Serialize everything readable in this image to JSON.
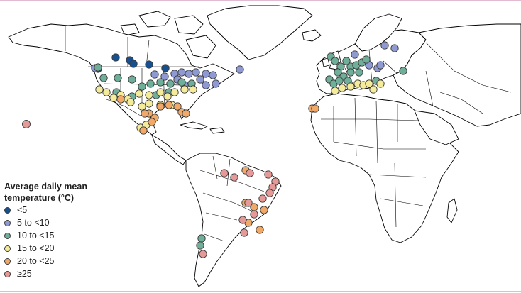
{
  "legend": {
    "title_line1": "Average daily mean",
    "title_line2": "temperature (°C)",
    "items": [
      {
        "key": "lt5",
        "label": "<5",
        "color": "#17508f"
      },
      {
        "key": "5to10",
        "label": "5 to <10",
        "color": "#8f9ad2"
      },
      {
        "key": "10to15",
        "label": "10 to <15",
        "color": "#6fae98"
      },
      {
        "key": "15to20",
        "label": "15 to <20",
        "color": "#f4ec9a"
      },
      {
        "key": "20to25",
        "label": "20 to <25",
        "color": "#f0a968"
      },
      {
        "key": "ge25",
        "label": "≥25",
        "color": "#e69a98"
      }
    ]
  },
  "colors": {
    "frame_line": "#d9a3c4",
    "land_fill": "#ffffff",
    "land_stroke": "#000000"
  }
}
